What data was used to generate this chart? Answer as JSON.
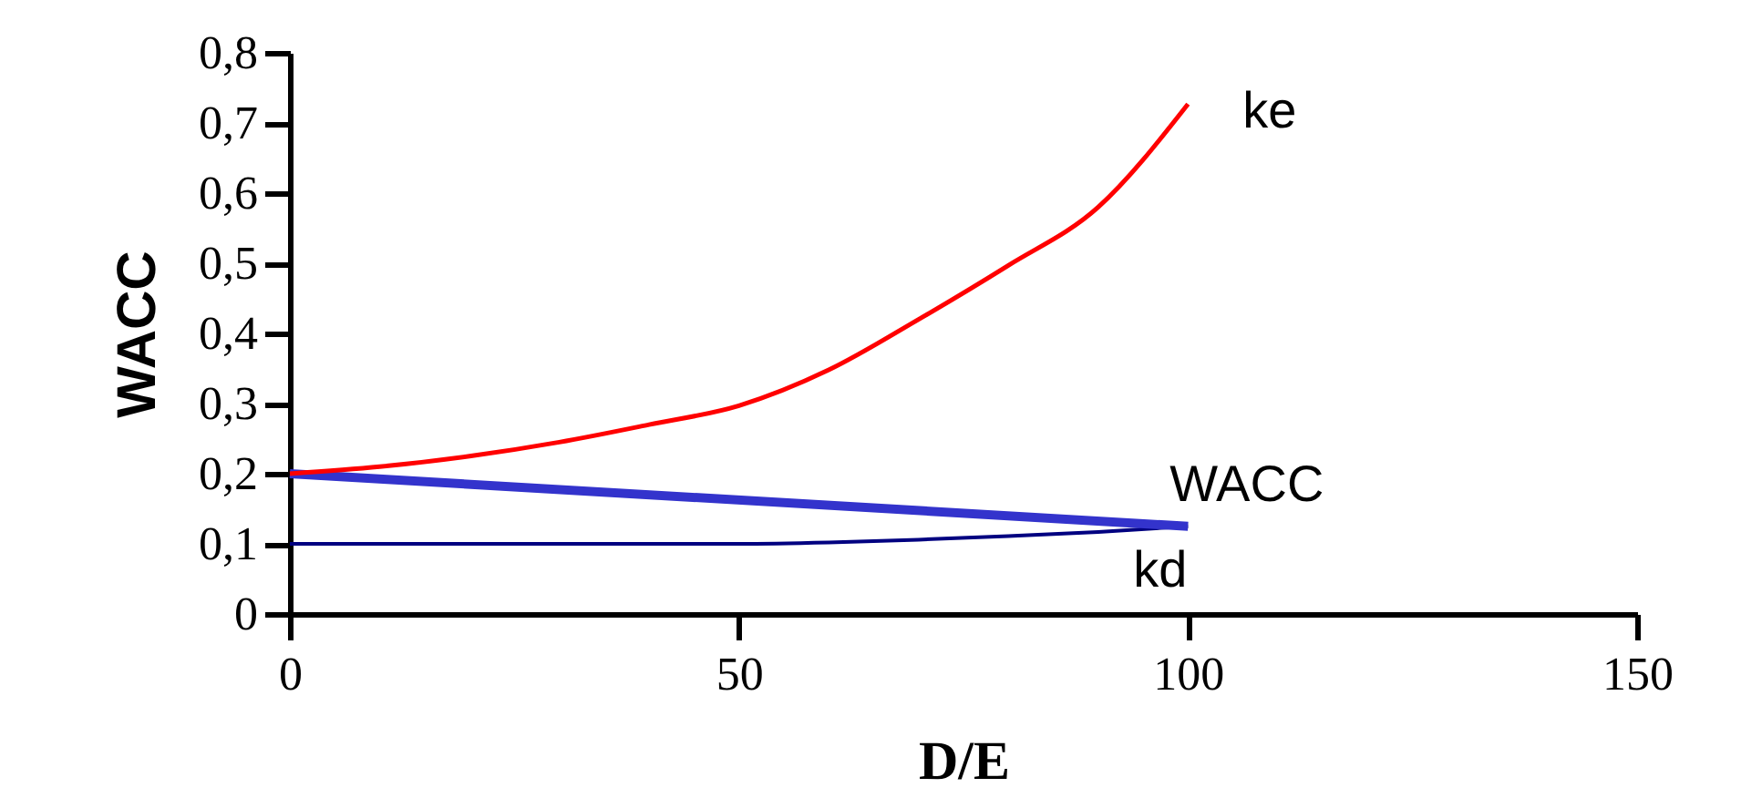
{
  "chart_data": {
    "type": "line",
    "xlabel": "D/E",
    "ylabel": "WACC",
    "xlim": [
      0,
      150
    ],
    "xticks": [
      0,
      50,
      100,
      150
    ],
    "ylim": [
      0,
      0.8
    ],
    "yticks": [
      {
        "value": 0,
        "label": "0"
      },
      {
        "value": 0.1,
        "label": "0,1"
      },
      {
        "value": 0.2,
        "label": "0,2"
      },
      {
        "value": 0.3,
        "label": "0,3"
      },
      {
        "value": 0.4,
        "label": "0,4"
      },
      {
        "value": 0.5,
        "label": "0,5"
      },
      {
        "value": 0.6,
        "label": "0,6"
      },
      {
        "value": 0.7,
        "label": "0,7"
      },
      {
        "value": 0.8,
        "label": "0,8"
      }
    ],
    "grid": false,
    "marker": "none",
    "line_style": "solid",
    "series": [
      {
        "name": "ke",
        "color": "#ff0000",
        "x": [
          0,
          10,
          20,
          30,
          40,
          50,
          60,
          70,
          80,
          90,
          100
        ],
        "values": [
          0.2,
          0.21,
          0.225,
          0.245,
          0.27,
          0.297,
          0.348,
          0.42,
          0.497,
          0.58,
          0.727
        ]
      },
      {
        "name": "WACC",
        "color": "#3333cc",
        "x": [
          0,
          100
        ],
        "values": [
          0.2,
          0.125
        ]
      },
      {
        "name": "kd",
        "color": "#000080",
        "x": [
          0,
          25,
          50,
          60,
          70,
          80,
          90,
          100
        ],
        "values": [
          0.1,
          0.1,
          0.1,
          0.102,
          0.106,
          0.111,
          0.117,
          0.125
        ]
      }
    ]
  }
}
